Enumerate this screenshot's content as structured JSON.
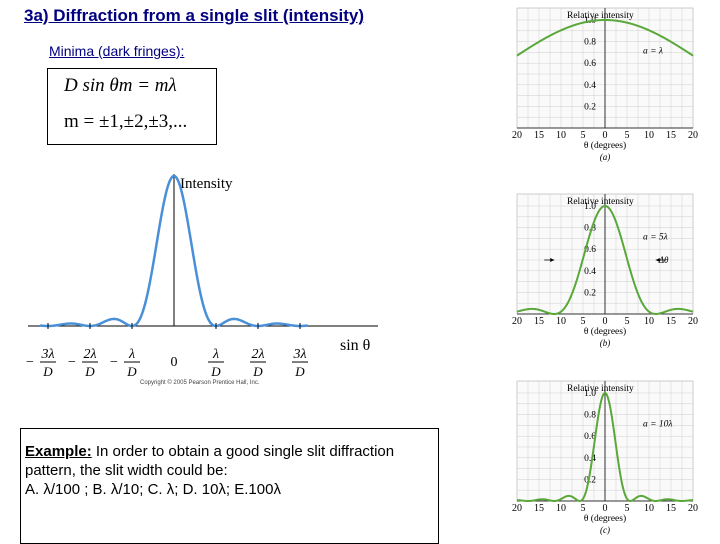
{
  "slide": {
    "title": "3a) Diffraction from a single slit (intensity)",
    "minima_label": "Minima (dark fringes):",
    "formula_line1": "D sin θm = mλ",
    "formula_line2": "m = ±1,±2,±3,...",
    "example": {
      "label": "Example:",
      "question": "In order to obtain a good single slit diffraction pattern, the slit width could be:",
      "options": "A. λ/100 ;   B. λ/10;    C. λ;    D. 10λ;    E.100λ"
    }
  },
  "main_diagram": {
    "ylabel": "Intensity",
    "xlabel": "sin θ",
    "copyright": "Copyright © 2005 Pearson Prentice Hall, Inc.",
    "ticks": [
      {
        "num": "3λ",
        "den": "D",
        "sign": "−",
        "value": -3
      },
      {
        "num": "2λ",
        "den": "D",
        "sign": "−",
        "value": -2
      },
      {
        "num": "λ",
        "den": "D",
        "sign": "−",
        "value": -1
      },
      {
        "num": "0",
        "den": "",
        "sign": "",
        "value": 0
      },
      {
        "num": "λ",
        "den": "D",
        "sign": "",
        "value": 1
      },
      {
        "num": "2λ",
        "den": "D",
        "sign": "",
        "value": 2
      },
      {
        "num": "3λ",
        "den": "D",
        "sign": "",
        "value": 3
      }
    ],
    "curve_color": "#4a90d9"
  },
  "chart_data": [
    {
      "type": "line",
      "panel": "(a)",
      "title": "Relative intensity",
      "annotation": "a = λ",
      "xlabel": "θ (degrees)",
      "x_ticks": [
        "20",
        "15",
        "10",
        "5",
        "0",
        "5",
        "10",
        "15",
        "20"
      ],
      "y_ticks": [
        "1.0",
        "0.8",
        "0.6",
        "0.4",
        "0.2"
      ],
      "xlim": [
        -20,
        20
      ],
      "ylim": [
        0,
        1.0
      ],
      "slit_ratio": 1,
      "color": "#5aa83a"
    },
    {
      "type": "line",
      "panel": "(b)",
      "title": "Relative intensity",
      "annotation": "a = 5λ",
      "annotation2": "Δθ",
      "xlabel": "θ (degrees)",
      "x_ticks": [
        "20",
        "15",
        "10",
        "5",
        "0",
        "5",
        "10",
        "15",
        "20"
      ],
      "y_ticks": [
        "1.0",
        "0.8",
        "0.6",
        "0.4",
        "0.2"
      ],
      "xlim": [
        -20,
        20
      ],
      "ylim": [
        0,
        1.0
      ],
      "slit_ratio": 5,
      "color": "#5aa83a"
    },
    {
      "type": "line",
      "panel": "(c)",
      "title": "Relative intensity",
      "annotation": "a = 10λ",
      "xlabel": "θ (degrees)",
      "x_ticks": [
        "20",
        "15",
        "10",
        "5",
        "0",
        "5",
        "10",
        "15",
        "20"
      ],
      "y_ticks": [
        "1.0",
        "0.8",
        "0.6",
        "0.4",
        "0.2"
      ],
      "xlim": [
        -20,
        20
      ],
      "ylim": [
        0,
        1.0
      ],
      "slit_ratio": 10,
      "color": "#5aa83a"
    }
  ]
}
